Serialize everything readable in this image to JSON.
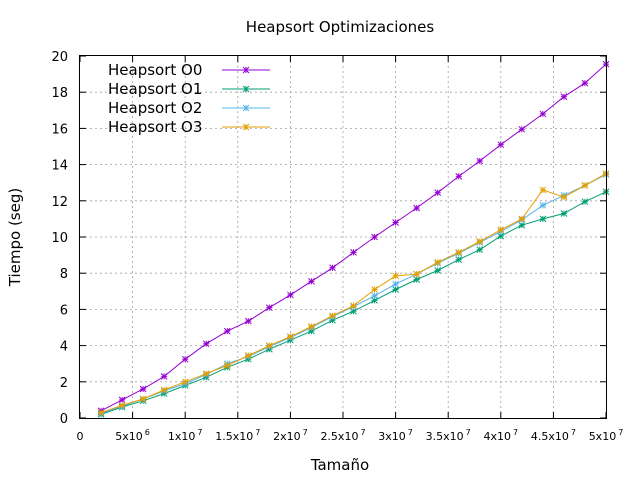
{
  "chart_data": {
    "type": "line",
    "title": "Heapsort Optimizaciones",
    "xlabel": "Tamaño",
    "ylabel": "Tiempo (seg)",
    "xlim": [
      0,
      50000000
    ],
    "ylim": [
      0,
      20
    ],
    "grid": true,
    "legend_position": "top-left",
    "x_ticks": [
      {
        "value": 0,
        "base": "0",
        "exp": ""
      },
      {
        "value": 5000000,
        "base": "5x10",
        "exp": "6"
      },
      {
        "value": 10000000,
        "base": "1x10",
        "exp": "7"
      },
      {
        "value": 15000000,
        "base": "1.5x10",
        "exp": "7"
      },
      {
        "value": 20000000,
        "base": "2x10",
        "exp": "7"
      },
      {
        "value": 25000000,
        "base": "2.5x10",
        "exp": "7"
      },
      {
        "value": 30000000,
        "base": "3x10",
        "exp": "7"
      },
      {
        "value": 35000000,
        "base": "3.5x10",
        "exp": "7"
      },
      {
        "value": 40000000,
        "base": "4x10",
        "exp": "7"
      },
      {
        "value": 45000000,
        "base": "4.5x10",
        "exp": "7"
      },
      {
        "value": 50000000,
        "base": "5x10",
        "exp": "7"
      }
    ],
    "y_ticks": [
      0,
      2,
      4,
      6,
      8,
      10,
      12,
      14,
      16,
      18,
      20
    ],
    "x": [
      2000000,
      4000000,
      6000000,
      8000000,
      10000000,
      12000000,
      14000000,
      16000000,
      18000000,
      20000000,
      22000000,
      24000000,
      26000000,
      28000000,
      30000000,
      32000000,
      34000000,
      36000000,
      38000000,
      40000000,
      42000000,
      44000000,
      46000000,
      48000000,
      50000000
    ],
    "series": [
      {
        "name": "Heapsort O0",
        "color": "#9400d3",
        "values": [
          0.4,
          1.0,
          1.6,
          2.3,
          3.25,
          4.1,
          4.8,
          5.35,
          6.1,
          6.8,
          7.55,
          8.3,
          9.15,
          10.0,
          10.8,
          11.6,
          12.45,
          13.35,
          14.2,
          15.1,
          15.95,
          16.8,
          17.75,
          18.5,
          19.55
        ]
      },
      {
        "name": "Heapsort O1",
        "color": "#009e73",
        "values": [
          0.2,
          0.6,
          0.95,
          1.35,
          1.8,
          2.25,
          2.8,
          3.25,
          3.8,
          4.3,
          4.8,
          5.4,
          5.9,
          6.5,
          7.1,
          7.65,
          8.15,
          8.75,
          9.3,
          10.05,
          10.65,
          11.0,
          11.3,
          11.95,
          12.5
        ]
      },
      {
        "name": "Heapsort O2",
        "color": "#56b4e9",
        "values": [
          0.25,
          0.65,
          1.05,
          1.5,
          1.9,
          2.4,
          3.0,
          3.4,
          3.95,
          4.45,
          5.0,
          5.6,
          6.15,
          6.75,
          7.4,
          7.95,
          8.55,
          9.1,
          9.7,
          10.3,
          10.95,
          11.75,
          12.3,
          12.85,
          13.45
        ]
      },
      {
        "name": "Heapsort O3",
        "color": "#e69f00",
        "values": [
          0.3,
          0.7,
          1.05,
          1.55,
          2.0,
          2.45,
          2.9,
          3.45,
          4.0,
          4.5,
          5.05,
          5.65,
          6.2,
          7.1,
          7.85,
          7.95,
          8.6,
          9.15,
          9.75,
          10.4,
          11.0,
          12.6,
          12.2,
          12.85,
          13.5
        ]
      }
    ]
  }
}
